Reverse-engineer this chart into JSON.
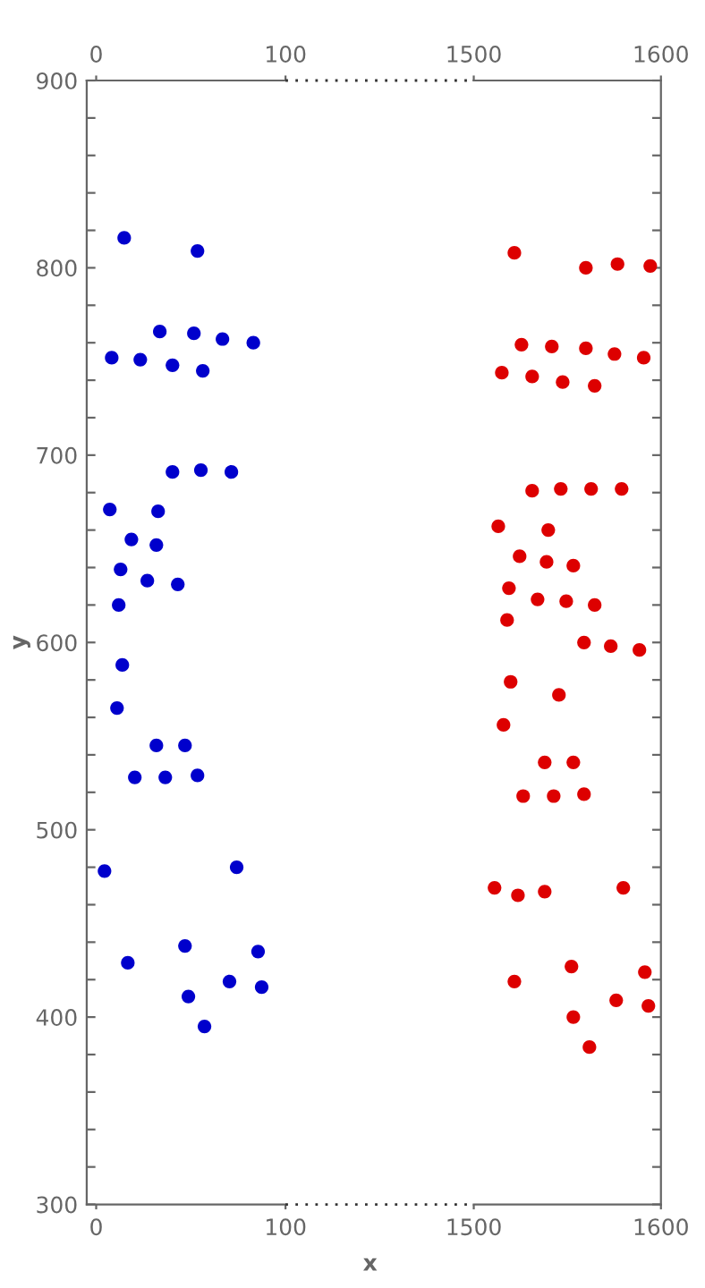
{
  "chart_data": [
    {
      "type": "scatter",
      "xlabel": "x",
      "ylabel": "y",
      "marker": "circle",
      "grid": false,
      "legend": false,
      "xlim": [
        -5,
        100
      ],
      "xticks": [
        0,
        100
      ],
      "x2lim": [
        -5,
        100
      ],
      "x2ticks": [
        0,
        100
      ],
      "ylim": [
        300,
        900
      ],
      "yticks": [
        300,
        {
          "value": 320,
          "label": null
        },
        {
          "value": 340,
          "label": null
        },
        {
          "value": 360,
          "label": null
        },
        {
          "value": 380,
          "label": null
        },
        400,
        {
          "value": 420,
          "label": null
        },
        {
          "value": 440,
          "label": null
        },
        {
          "value": 460,
          "label": null
        },
        {
          "value": 480,
          "label": null
        },
        500,
        {
          "value": 520,
          "label": null
        },
        {
          "value": 540,
          "label": null
        },
        {
          "value": 560,
          "label": null
        },
        {
          "value": 580,
          "label": null
        },
        600,
        {
          "value": 620,
          "label": null
        },
        {
          "value": 640,
          "label": null
        },
        {
          "value": 660,
          "label": null
        },
        {
          "value": 680,
          "label": null
        },
        700,
        {
          "value": 720,
          "label": null
        },
        {
          "value": 740,
          "label": null
        },
        {
          "value": 760,
          "label": null
        },
        {
          "value": 780,
          "label": null
        },
        800,
        {
          "value": 820,
          "label": null
        },
        {
          "value": 840,
          "label": null
        },
        {
          "value": 860,
          "label": null
        },
        {
          "value": 880,
          "label": null
        },
        900
      ],
      "series": [
        {
          "color": "#0000cc",
          "x": [
            14.8,
            53.5,
            33.6,
            51.6,
            66.7,
            83,
            8.2,
            23.3,
            40.3,
            56.3,
            40.3,
            55.3,
            71.4,
            7.2,
            32.7,
            18.6,
            31.8,
            12.9,
            27,
            43.1,
            11.9,
            13.8,
            11,
            31.8,
            46.9,
            20.4,
            36.5,
            53.5,
            4.4,
            74.2,
            46.9,
            85.5,
            16.7,
            70.4,
            87.4,
            48.7,
            57.2
          ],
          "values": [
            816,
            809,
            766,
            765,
            762,
            760,
            752,
            751,
            748,
            745,
            691,
            692,
            691,
            671,
            670,
            655,
            652,
            639,
            633,
            631,
            620,
            588,
            565,
            545,
            545,
            528,
            528,
            529,
            478,
            480,
            438,
            435,
            429,
            419,
            416,
            411,
            395
          ]
        }
      ]
    },
    {
      "type": "scatter",
      "marker": "circle",
      "grid": false,
      "legend": false,
      "tick_labels": "x",
      "xlim": [
        1500,
        1600
      ],
      "xticks": [
        1500,
        1600
      ],
      "x2lim": [
        1500,
        1600
      ],
      "x2ticks": [
        1500,
        1600
      ],
      "ylim": [
        300,
        900
      ],
      "yticks": [
        300,
        {
          "value": 320,
          "label": null
        },
        {
          "value": 340,
          "label": null
        },
        {
          "value": 360,
          "label": null
        },
        {
          "value": 380,
          "label": null
        },
        400,
        {
          "value": 420,
          "label": null
        },
        {
          "value": 440,
          "label": null
        },
        {
          "value": 460,
          "label": null
        },
        {
          "value": 480,
          "label": null
        },
        500,
        {
          "value": 520,
          "label": null
        },
        {
          "value": 540,
          "label": null
        },
        {
          "value": 560,
          "label": null
        },
        {
          "value": 580,
          "label": null
        },
        600,
        {
          "value": 620,
          "label": null
        },
        {
          "value": 640,
          "label": null
        },
        {
          "value": 660,
          "label": null
        },
        {
          "value": 680,
          "label": null
        },
        700,
        {
          "value": 720,
          "label": null
        },
        {
          "value": 740,
          "label": null
        },
        {
          "value": 760,
          "label": null
        },
        {
          "value": 780,
          "label": null
        },
        800,
        {
          "value": 820,
          "label": null
        },
        {
          "value": 840,
          "label": null
        },
        {
          "value": 860,
          "label": null
        },
        {
          "value": 880,
          "label": null
        },
        900
      ],
      "series": [
        {
          "color": "#dd0000",
          "x": [
            1521.7,
            1559.9,
            1576.8,
            1594.3,
            1525.5,
            1541.7,
            1559.9,
            1575.2,
            1590.8,
            1515,
            1531.2,
            1547.5,
            1564.6,
            1531.2,
            1546.5,
            1562.7,
            1579,
            1513.1,
            1539.8,
            1524.5,
            1538.9,
            1553.2,
            1518.8,
            1534.1,
            1549.4,
            1564.6,
            1517.8,
            1558.9,
            1573.2,
            1588.5,
            1519.7,
            1545.5,
            1515.9,
            1537.9,
            1553.2,
            1526.4,
            1542.7,
            1558.9,
            1511.1,
            1523.6,
            1537.9,
            1579.9,
            1552.2,
            1591.4,
            1521.7,
            1576.1,
            1593.3,
            1553.2,
            1561.8
          ],
          "values": [
            808,
            800,
            802,
            801,
            759,
            758,
            757,
            754,
            752,
            744,
            742,
            739,
            737,
            681,
            682,
            682,
            682,
            662,
            660,
            646,
            643,
            641,
            629,
            623,
            622,
            620,
            612,
            600,
            598,
            596,
            579,
            572,
            556,
            536,
            536,
            518,
            518,
            519,
            469,
            465,
            467,
            469,
            427,
            424,
            419,
            409,
            406,
            400,
            384
          ]
        }
      ]
    }
  ]
}
